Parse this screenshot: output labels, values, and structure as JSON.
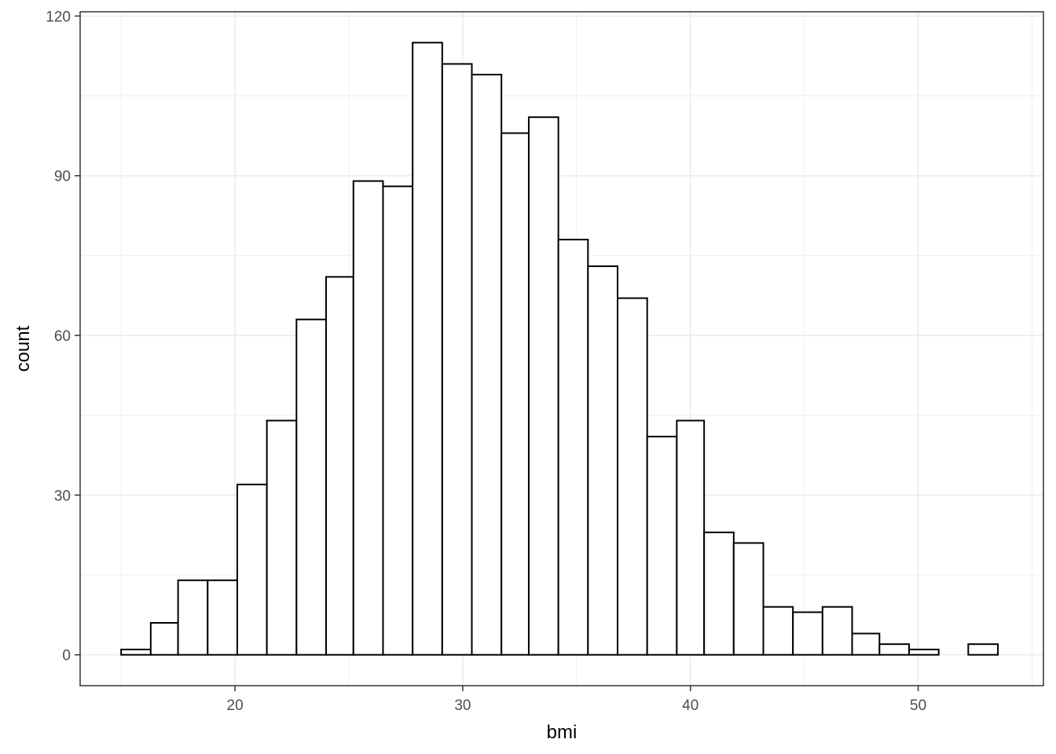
{
  "chart_data": {
    "type": "bar",
    "subtype": "histogram",
    "title": "",
    "xlabel": "bmi",
    "ylabel": "count",
    "xlim": [
      13.2,
      55.5
    ],
    "ylim": [
      -5.8,
      120.8
    ],
    "xticks": [
      20,
      30,
      40,
      50
    ],
    "yticks": [
      0,
      30,
      60,
      90,
      120
    ],
    "grid": true,
    "legend": "none",
    "bin_edges": [
      15.0,
      16.3,
      17.5,
      18.8,
      20.1,
      21.4,
      22.7,
      24.0,
      25.2,
      26.5,
      27.8,
      29.1,
      30.4,
      31.7,
      32.9,
      34.2,
      35.5,
      36.8,
      38.1,
      39.4,
      40.6,
      41.9,
      43.2,
      44.5,
      45.8,
      47.1,
      48.3,
      49.6,
      50.9,
      52.2,
      53.5
    ],
    "values": [
      1,
      6,
      14,
      14,
      32,
      44,
      63,
      71,
      89,
      88,
      115,
      111,
      109,
      98,
      101,
      78,
      73,
      67,
      41,
      44,
      23,
      21,
      9,
      8,
      9,
      4,
      2,
      1,
      0,
      2
    ],
    "colors": {
      "bar_fill": "#ffffff",
      "bar_stroke": "#000000",
      "grid": "#ebebeb",
      "panel_border": "#333333"
    }
  }
}
